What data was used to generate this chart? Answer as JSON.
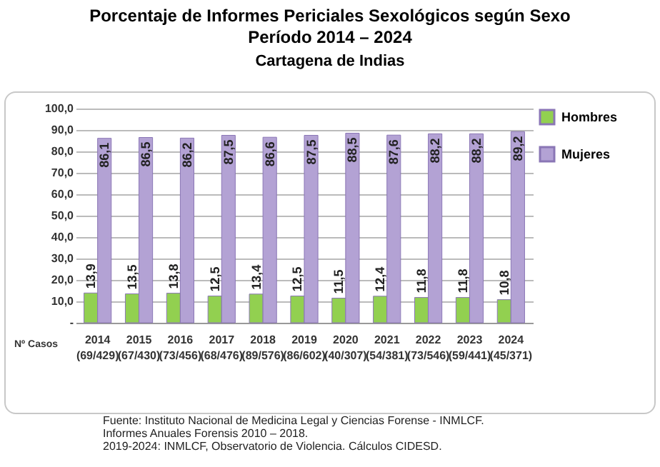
{
  "chart_data": {
    "type": "bar",
    "title": "Porcentaje de Informes Periciales Sexológicos según Sexo\nPeríodo 2014 – 2024",
    "subtitle": "Cartagena de Indias",
    "categories": [
      "2014\n(69/429)",
      "2015\n(67/430)",
      "2016\n(73/456)",
      "2017\n(68/476)",
      "2018\n(89/576)",
      "2019\n(86/602)",
      "2020\n(40/307)",
      "2021\n(54/381)",
      "2022\n(73/546)",
      "2023\n(59/441)",
      "2024\n(45/371)"
    ],
    "series": [
      {
        "name": "Hombres",
        "color": "#92d050",
        "values": [
          13.9,
          13.5,
          13.8,
          12.5,
          13.4,
          12.5,
          11.5,
          12.4,
          11.8,
          11.8,
          10.8
        ],
        "value_labels": [
          "13,9",
          "13,5",
          "13,8",
          "12,5",
          "13,4",
          "12,5",
          "11,5",
          "12,4",
          "11,8",
          "11,8",
          "10,8"
        ]
      },
      {
        "name": "Mujeres",
        "color": "#b3a2d4",
        "values": [
          86.1,
          86.5,
          86.2,
          87.5,
          86.6,
          87.5,
          88.5,
          87.6,
          88.2,
          88.2,
          89.2
        ],
        "value_labels": [
          "86,1",
          "86,5",
          "86,2",
          "87,5",
          "86,6",
          "87,5",
          "88,5",
          "87,6",
          "88,2",
          "88,2",
          "89,2"
        ]
      }
    ],
    "ylim": [
      0,
      100
    ],
    "yticks": [
      {
        "value": 0,
        "label": "-"
      },
      {
        "value": 10,
        "label": "10,0"
      },
      {
        "value": 20,
        "label": "20,0"
      },
      {
        "value": 30,
        "label": "30,0"
      },
      {
        "value": 40,
        "label": "40,0"
      },
      {
        "value": 50,
        "label": "50,0"
      },
      {
        "value": 60,
        "label": "60,0"
      },
      {
        "value": 70,
        "label": "70,0"
      },
      {
        "value": 80,
        "label": "80,0"
      },
      {
        "value": 90,
        "label": "90,0"
      },
      {
        "value": 100,
        "label": "100,0"
      }
    ],
    "grid": "y",
    "legend": "right",
    "annotations": [
      "Nº Casos",
      "Fuente: Instituto Nacional de Medicina Legal y Ciencias Forense - INMLCF.\nInformes Anuales Forensis 2010 – 2018.\n2019-2024: INMLCF, Observatorio de Violencia. Cálculos CIDESD."
    ]
  }
}
